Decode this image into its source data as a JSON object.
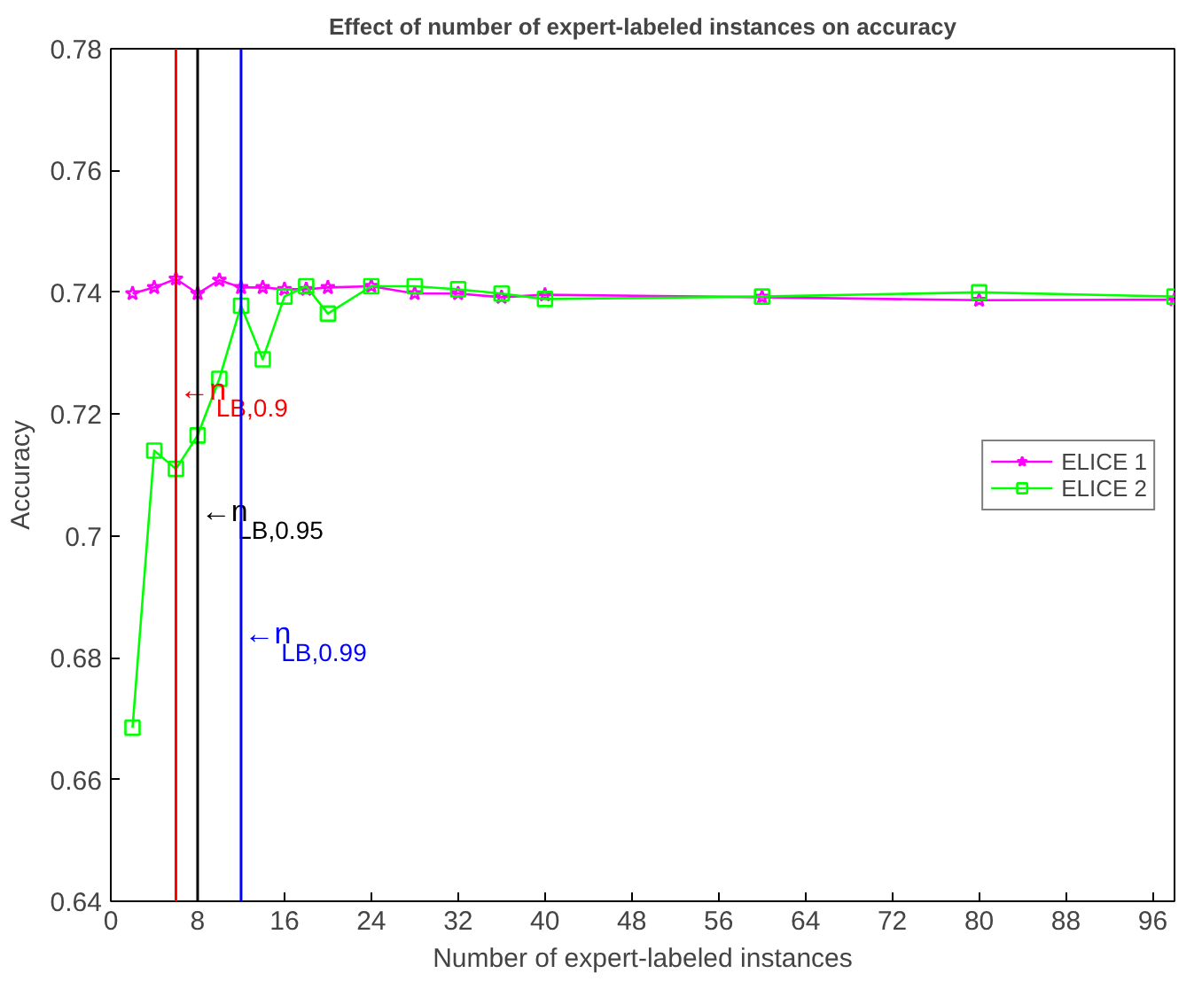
{
  "chart_data": {
    "type": "line",
    "title": "Effect of number of expert-labeled instances on accuracy",
    "xlabel": "Number of expert-labeled instances",
    "ylabel": "Accuracy",
    "x": [
      2,
      4,
      6,
      8,
      10,
      12,
      14,
      16,
      18,
      20,
      24,
      28,
      32,
      36,
      40,
      60,
      80,
      98
    ],
    "series": [
      {
        "name": "ELICE 1",
        "color": "#ff00ff",
        "marker": "star",
        "values": [
          0.7398,
          0.7408,
          0.7422,
          0.7398,
          0.742,
          0.7408,
          0.7408,
          0.7405,
          0.7405,
          0.7408,
          0.741,
          0.7398,
          0.7398,
          0.7392,
          0.7396,
          0.7392,
          0.7387,
          0.7388
        ]
      },
      {
        "name": "ELICE 2",
        "color": "#00ff00",
        "marker": "square",
        "values": [
          0.6685,
          0.714,
          0.711,
          0.7165,
          0.7258,
          0.7378,
          0.729,
          0.7393,
          0.741,
          0.7365,
          0.741,
          0.741,
          0.7405,
          0.7398,
          0.7389,
          0.7393,
          0.74,
          0.7393
        ]
      }
    ],
    "ref_lines": [
      {
        "axis": "x",
        "value": 6,
        "label": "←n$_{LB,0.9}$",
        "color": "#ff0000"
      },
      {
        "axis": "x",
        "value": 8,
        "label": "←n$_{LB,0.95}$",
        "color": "#000000"
      },
      {
        "axis": "x",
        "value": 12,
        "label": "←n$_{LB,0.99}$",
        "color": "#0000ff"
      }
    ],
    "xlim": [
      0,
      98
    ],
    "xticks": [
      0,
      8,
      16,
      24,
      32,
      40,
      48,
      56,
      64,
      72,
      80,
      88,
      96
    ],
    "ylim": [
      0.64,
      0.78
    ],
    "yticks": [
      0.64,
      0.66,
      0.68,
      0.7,
      0.72,
      0.74,
      0.76,
      0.78
    ],
    "grid": false,
    "legend": "right",
    "line_style": "solid"
  }
}
